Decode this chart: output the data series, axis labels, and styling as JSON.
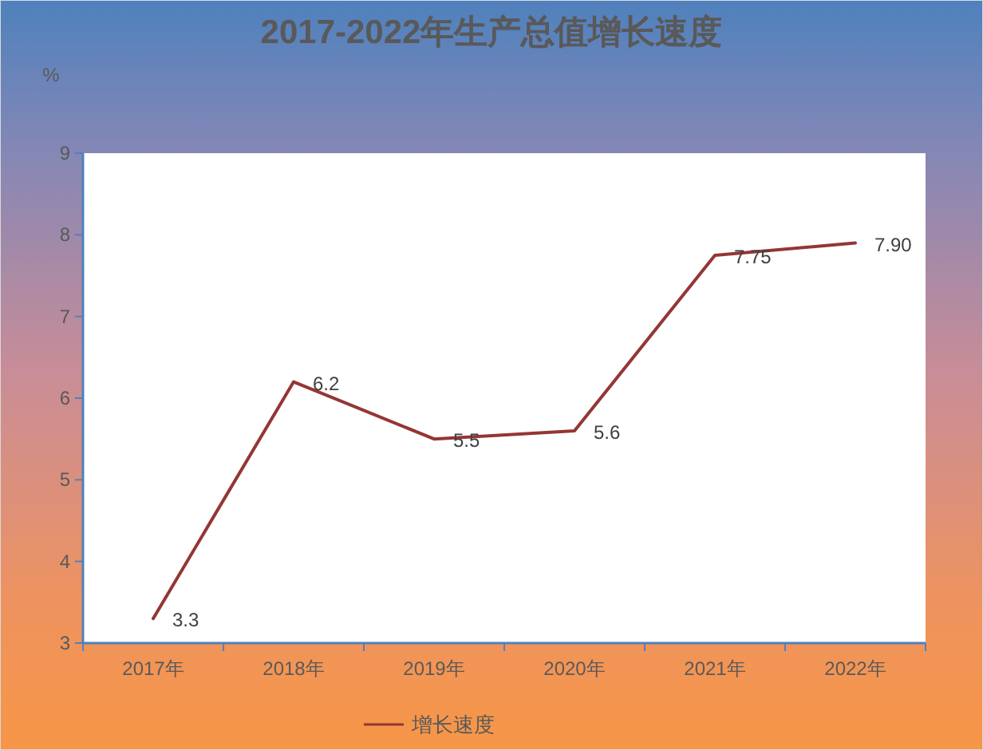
{
  "chart_data": {
    "type": "line",
    "title": "2017-2022年生产总值增长速度",
    "ylabel": "%",
    "categories": [
      "2017年",
      "2018年",
      "2019年",
      "2020年",
      "2021年",
      "2022年"
    ],
    "series": [
      {
        "name": "增长速度",
        "color": "#943634",
        "values": [
          3.3,
          6.2,
          5.5,
          5.6,
          7.75,
          7.9
        ],
        "value_labels": [
          "3.3",
          "6.2",
          "5.5",
          "5.6",
          "7.75",
          "7.90"
        ]
      }
    ],
    "ylim": [
      3,
      9
    ],
    "yticks": [
      3,
      4,
      5,
      6,
      7,
      8,
      9
    ],
    "legend": "bottom"
  }
}
